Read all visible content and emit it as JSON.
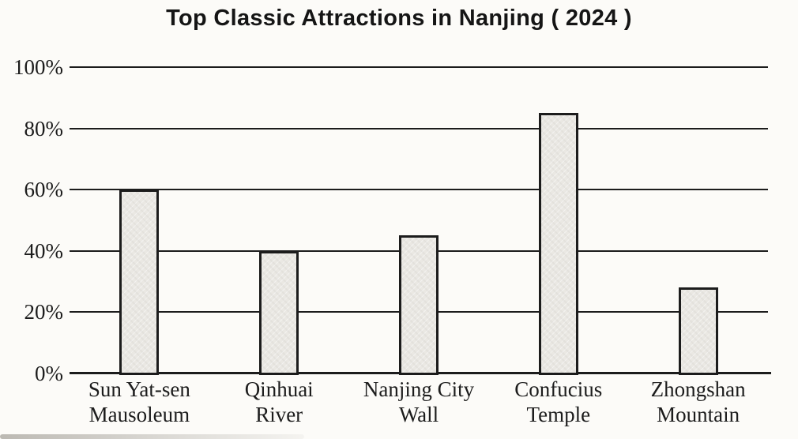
{
  "figure": {
    "background": "#fcfbf8",
    "line_color": "#1c1c1c",
    "bar_fill": "#eae8e3",
    "bar_border": "#1c1c1c"
  },
  "chart_data": {
    "type": "bar",
    "title": "Top Classic Attractions in Nanjing ( 2024 )",
    "categories": [
      "Sun Yat-sen Mausoleum",
      "Qinhuai River",
      "Nanjing City Wall",
      "Confucius Temple",
      "Zhongshan Mountain"
    ],
    "category_lines": [
      [
        "Sun Yat-sen",
        "Mausoleum"
      ],
      [
        "Qinhuai",
        "River"
      ],
      [
        "Nanjing City",
        "Wall"
      ],
      [
        "Confucius",
        "Temple"
      ],
      [
        "Zhongshan",
        "Mountain"
      ]
    ],
    "values": [
      60,
      40,
      45,
      85,
      28
    ],
    "unit": "%",
    "xlabel": "",
    "ylabel": "",
    "ylim": [
      0,
      100
    ],
    "yticks": [
      0,
      20,
      40,
      60,
      80,
      100
    ],
    "ytick_labels": [
      "0%",
      "20%",
      "40%",
      "60%",
      "80%",
      "100%"
    ],
    "grid": "horizontal",
    "legend_position": "none"
  }
}
